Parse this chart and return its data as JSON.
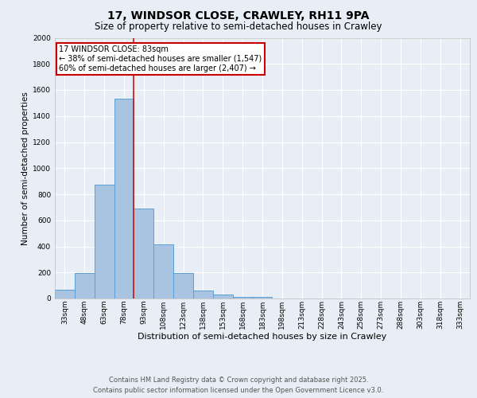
{
  "title1": "17, WINDSOR CLOSE, CRAWLEY, RH11 9PA",
  "title2": "Size of property relative to semi-detached houses in Crawley",
  "xlabel": "Distribution of semi-detached houses by size in Crawley",
  "ylabel": "Number of semi-detached properties",
  "footer1": "Contains HM Land Registry data © Crown copyright and database right 2025.",
  "footer2": "Contains public sector information licensed under the Open Government Licence v3.0.",
  "bin_labels": [
    "33sqm",
    "48sqm",
    "63sqm",
    "78sqm",
    "93sqm",
    "108sqm",
    "123sqm",
    "138sqm",
    "153sqm",
    "168sqm",
    "183sqm",
    "198sqm",
    "213sqm",
    "228sqm",
    "243sqm",
    "258sqm",
    "273sqm",
    "288sqm",
    "303sqm",
    "318sqm",
    "333sqm"
  ],
  "bin_values": [
    65,
    195,
    875,
    1530,
    690,
    415,
    195,
    60,
    30,
    15,
    15,
    0,
    0,
    0,
    0,
    0,
    0,
    0,
    0,
    0,
    0
  ],
  "bar_color": "#a8c4e0",
  "bar_edge_color": "#5a9fd4",
  "red_line_x": 3.5,
  "annotation_title": "17 WINDSOR CLOSE: 83sqm",
  "annotation_line1": "← 38% of semi-detached houses are smaller (1,547)",
  "annotation_line2": "60% of semi-detached houses are larger (2,407) →",
  "annotation_box_color": "#ffffff",
  "annotation_box_edge": "#cc0000",
  "ylim": [
    0,
    2000
  ],
  "yticks": [
    0,
    200,
    400,
    600,
    800,
    1000,
    1200,
    1400,
    1600,
    1800,
    2000
  ],
  "background_color": "#e8eef5",
  "plot_background": "#e8eef5",
  "grid_color": "#ffffff",
  "title1_fontsize": 10,
  "title2_fontsize": 8.5,
  "ylabel_fontsize": 7.5,
  "xlabel_fontsize": 8,
  "tick_fontsize": 6.5,
  "footer_fontsize": 6,
  "annot_fontsize": 7
}
